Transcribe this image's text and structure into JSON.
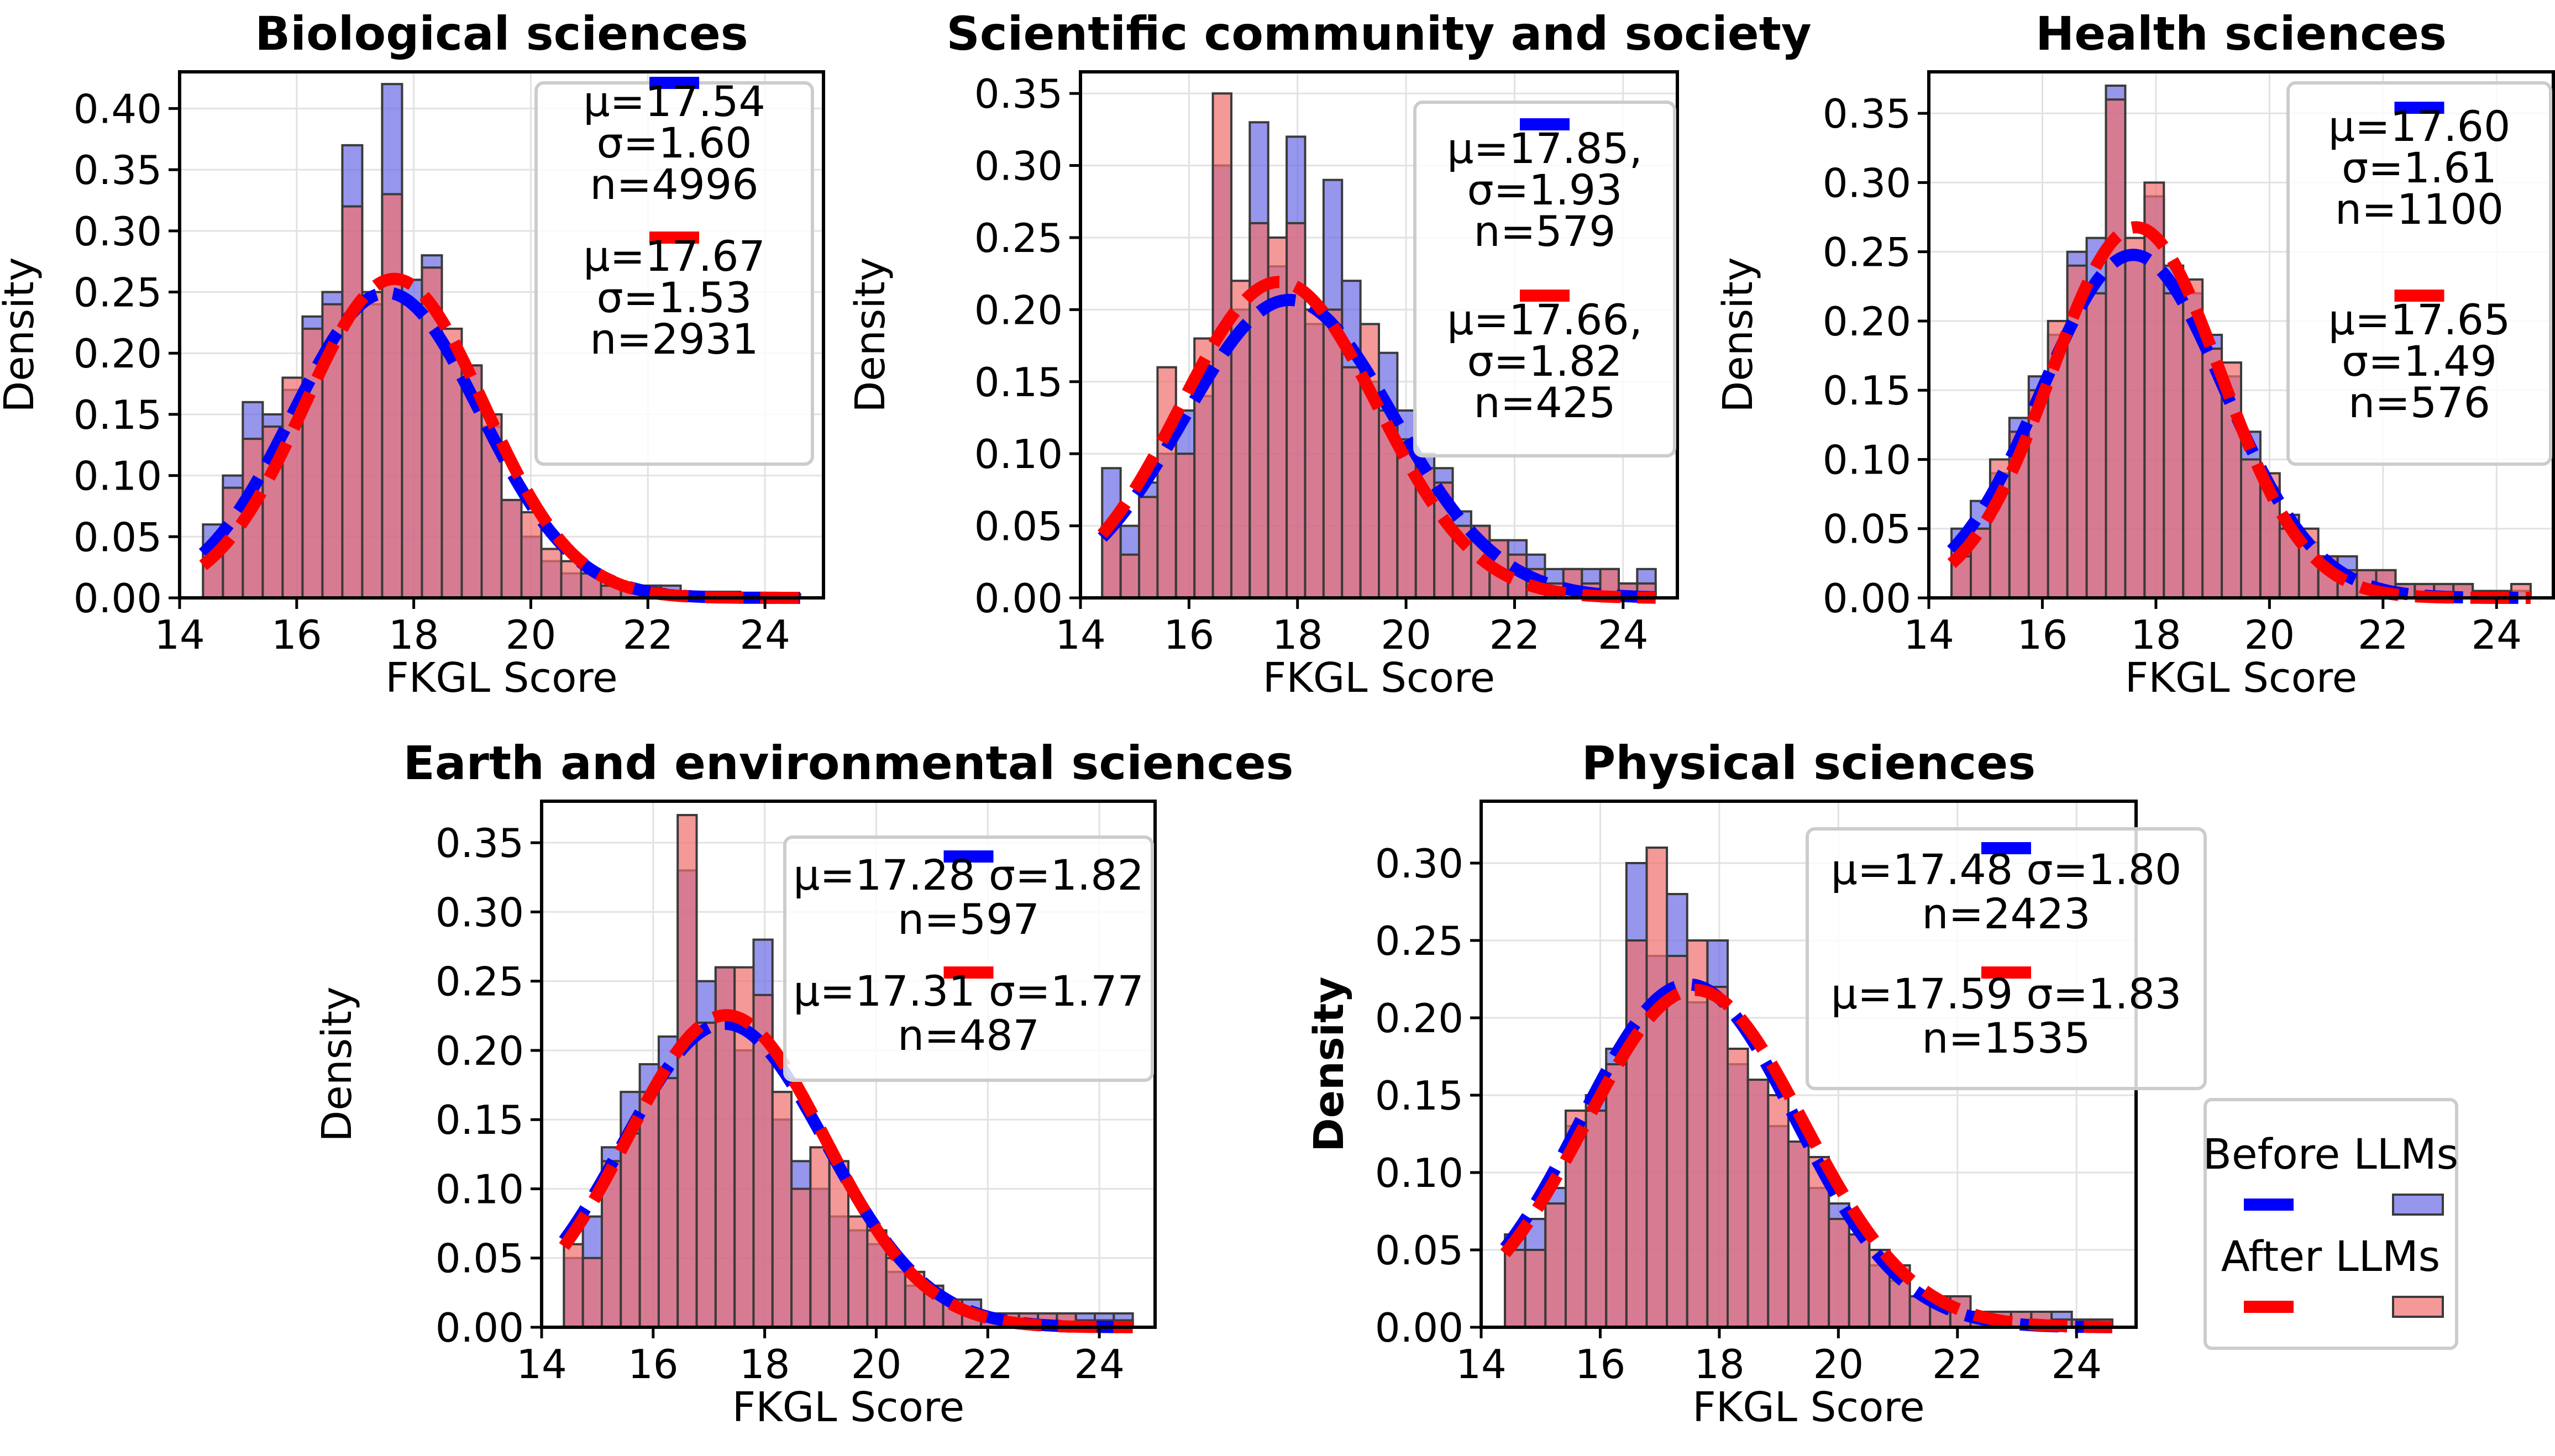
{
  "colors": {
    "before": "#0000ff",
    "after": "#ff0000",
    "before_bar": "#6d6de6",
    "after_bar": "#f07070",
    "edge": "#3a3a3a",
    "grid": "#e2e2e2"
  },
  "legend": {
    "before": "Before LLMs",
    "after": "After LLMs"
  },
  "chart_data": [
    {
      "type": "bar",
      "title": "Biological sciences",
      "xlabel": "FKGL Score",
      "ylabel": "Density",
      "xlim": [
        14,
        25
      ],
      "ylim": [
        0,
        0.43
      ],
      "xticks": [
        14,
        16,
        18,
        20,
        22,
        24
      ],
      "yticks": [
        "0.00",
        "0.05",
        "0.10",
        "0.15",
        "0.20",
        "0.25",
        "0.30",
        "0.35",
        "0.40"
      ],
      "bin_start": 14.4,
      "bin_width": 0.34,
      "legend_text": [
        [
          "μ=17.54",
          "σ=1.60",
          "n=4996"
        ],
        [
          "μ=17.67",
          "σ=1.53",
          "n=2931"
        ]
      ],
      "series": [
        {
          "name": "Before LLMs",
          "mu": 17.54,
          "sigma": 1.6,
          "values": [
            0.06,
            0.1,
            0.16,
            0.15,
            0.17,
            0.23,
            0.25,
            0.37,
            0.24,
            0.42,
            0.26,
            0.28,
            0.2,
            0.19,
            0.14,
            0.08,
            0.05,
            0.03,
            0.02,
            0.02,
            0.01,
            0.01,
            0.01,
            0.01,
            0.005,
            0.005,
            0.005,
            0.004,
            0.003,
            0.003
          ]
        },
        {
          "name": "After LLMs",
          "mu": 17.67,
          "sigma": 1.53,
          "values": [
            0.04,
            0.09,
            0.13,
            0.14,
            0.18,
            0.22,
            0.24,
            0.32,
            0.25,
            0.33,
            0.24,
            0.27,
            0.22,
            0.19,
            0.15,
            0.08,
            0.07,
            0.04,
            0.03,
            0.02,
            0.01,
            0.01,
            0.01,
            0.005,
            0.005,
            0.004,
            0.004,
            0.003,
            0.002,
            0.002
          ]
        }
      ]
    },
    {
      "type": "bar",
      "title": "Scientific community and society",
      "xlabel": "FKGL Score",
      "ylabel": "Density",
      "xlim": [
        14,
        25
      ],
      "ylim": [
        0,
        0.365
      ],
      "xticks": [
        14,
        16,
        18,
        20,
        22,
        24
      ],
      "yticks": [
        "0.00",
        "0.05",
        "0.10",
        "0.15",
        "0.20",
        "0.25",
        "0.30",
        "0.35"
      ],
      "bin_start": 14.4,
      "bin_width": 0.34,
      "legend_text": [
        [
          "μ=17.85,",
          "σ=1.93",
          "n=579"
        ],
        [
          "μ=17.66,",
          "σ=1.82",
          "n=425"
        ]
      ],
      "series": [
        {
          "name": "Before LLMs",
          "mu": 17.85,
          "sigma": 1.93,
          "values": [
            0.09,
            0.05,
            0.08,
            0.1,
            0.13,
            0.14,
            0.3,
            0.2,
            0.33,
            0.23,
            0.32,
            0.19,
            0.29,
            0.22,
            0.15,
            0.17,
            0.13,
            0.1,
            0.09,
            0.06,
            0.05,
            0.04,
            0.04,
            0.03,
            0.02,
            0.02,
            0.02,
            0.02,
            0.01,
            0.02
          ]
        },
        {
          "name": "After LLMs",
          "mu": 17.66,
          "sigma": 1.82,
          "values": [
            0.05,
            0.03,
            0.07,
            0.16,
            0.1,
            0.18,
            0.35,
            0.22,
            0.26,
            0.25,
            0.26,
            0.2,
            0.2,
            0.16,
            0.19,
            0.13,
            0.11,
            0.09,
            0.08,
            0.05,
            0.05,
            0.04,
            0.03,
            0.02,
            0.01,
            0.02,
            0.01,
            0.02,
            0.01,
            0.01
          ]
        }
      ]
    },
    {
      "type": "bar",
      "title": "Health sciences",
      "xlabel": "FKGL Score",
      "ylabel": "Density",
      "xlim": [
        14,
        25
      ],
      "ylim": [
        0,
        0.38
      ],
      "xticks": [
        14,
        16,
        18,
        20,
        22,
        24
      ],
      "yticks": [
        "0.00",
        "0.05",
        "0.10",
        "0.15",
        "0.20",
        "0.25",
        "0.30",
        "0.35"
      ],
      "bin_start": 14.4,
      "bin_width": 0.34,
      "legend_text": [
        [
          "μ=17.60",
          "σ=1.61",
          "n=1100"
        ],
        [
          "μ=17.65",
          "σ=1.49",
          "n=576"
        ]
      ],
      "series": [
        {
          "name": "Before LLMs",
          "mu": 17.6,
          "sigma": 1.61,
          "values": [
            0.05,
            0.07,
            0.09,
            0.13,
            0.16,
            0.19,
            0.25,
            0.26,
            0.37,
            0.25,
            0.29,
            0.24,
            0.22,
            0.19,
            0.16,
            0.12,
            0.08,
            0.06,
            0.04,
            0.03,
            0.03,
            0.02,
            0.02,
            0.01,
            0.01,
            0.01,
            0.01,
            0.005,
            0.005,
            0.005
          ]
        },
        {
          "name": "After LLMs",
          "mu": 17.65,
          "sigma": 1.49,
          "values": [
            0.03,
            0.05,
            0.1,
            0.12,
            0.15,
            0.2,
            0.24,
            0.22,
            0.36,
            0.26,
            0.3,
            0.22,
            0.23,
            0.18,
            0.17,
            0.1,
            0.09,
            0.05,
            0.05,
            0.03,
            0.02,
            0.02,
            0.02,
            0.01,
            0.01,
            0.01,
            0.01,
            0.005,
            0.005,
            0.01
          ]
        }
      ]
    },
    {
      "type": "bar",
      "title": "Earth and environmental sciences",
      "xlabel": "FKGL Score",
      "ylabel": "Density",
      "xlim": [
        14,
        25
      ],
      "ylim": [
        0,
        0.38
      ],
      "xticks": [
        14,
        16,
        18,
        20,
        22,
        24
      ],
      "yticks": [
        "0.00",
        "0.05",
        "0.10",
        "0.15",
        "0.20",
        "0.25",
        "0.30",
        "0.35"
      ],
      "bin_start": 14.4,
      "bin_width": 0.34,
      "legend_text": [
        [
          "μ=17.28 σ=1.82",
          "n=597"
        ],
        [
          "μ=17.31 σ=1.77",
          "n=487"
        ]
      ],
      "series": [
        {
          "name": "Before LLMs",
          "mu": 17.28,
          "sigma": 1.82,
          "values": [
            0.05,
            0.08,
            0.13,
            0.17,
            0.19,
            0.21,
            0.33,
            0.25,
            0.26,
            0.2,
            0.28,
            0.15,
            0.12,
            0.1,
            0.08,
            0.07,
            0.06,
            0.04,
            0.03,
            0.03,
            0.02,
            0.02,
            0.01,
            0.01,
            0.01,
            0.01,
            0.01,
            0.01,
            0.01,
            0.01
          ]
        },
        {
          "name": "After LLMs",
          "mu": 17.31,
          "sigma": 1.77,
          "values": [
            0.06,
            0.05,
            0.12,
            0.14,
            0.17,
            0.18,
            0.37,
            0.22,
            0.26,
            0.26,
            0.24,
            0.17,
            0.1,
            0.13,
            0.12,
            0.08,
            0.07,
            0.05,
            0.04,
            0.03,
            0.02,
            0.01,
            0.01,
            0.01,
            0.01,
            0.01,
            0.01,
            0.005,
            0.005,
            0.005
          ]
        }
      ]
    },
    {
      "type": "bar",
      "title": "Physical sciences",
      "xlabel": "FKGL Score",
      "ylabel": "Density",
      "xlim": [
        14,
        25
      ],
      "ylim": [
        0,
        0.34
      ],
      "xticks": [
        14,
        16,
        18,
        20,
        22,
        24
      ],
      "yticks": [
        "0.00",
        "0.05",
        "0.10",
        "0.15",
        "0.20",
        "0.25",
        "0.30"
      ],
      "bin_start": 14.4,
      "bin_width": 0.34,
      "legend_text": [
        [
          "μ=17.48 σ=1.80",
          "n=2423"
        ],
        [
          "μ=17.59 σ=1.83",
          "n=1535"
        ]
      ],
      "series": [
        {
          "name": "Before LLMs",
          "mu": 17.48,
          "sigma": 1.8,
          "values": [
            0.06,
            0.07,
            0.09,
            0.13,
            0.15,
            0.18,
            0.3,
            0.24,
            0.28,
            0.21,
            0.25,
            0.17,
            0.16,
            0.13,
            0.12,
            0.09,
            0.08,
            0.06,
            0.04,
            0.03,
            0.02,
            0.02,
            0.02,
            0.01,
            0.01,
            0.01,
            0.01,
            0.01,
            0.005,
            0.005
          ]
        },
        {
          "name": "After LLMs",
          "mu": 17.59,
          "sigma": 1.83,
          "values": [
            0.05,
            0.05,
            0.08,
            0.14,
            0.14,
            0.17,
            0.25,
            0.31,
            0.24,
            0.25,
            0.22,
            0.18,
            0.16,
            0.15,
            0.12,
            0.11,
            0.07,
            0.06,
            0.05,
            0.04,
            0.02,
            0.02,
            0.02,
            0.01,
            0.01,
            0.01,
            0.01,
            0.005,
            0.005,
            0.005
          ]
        }
      ]
    }
  ]
}
